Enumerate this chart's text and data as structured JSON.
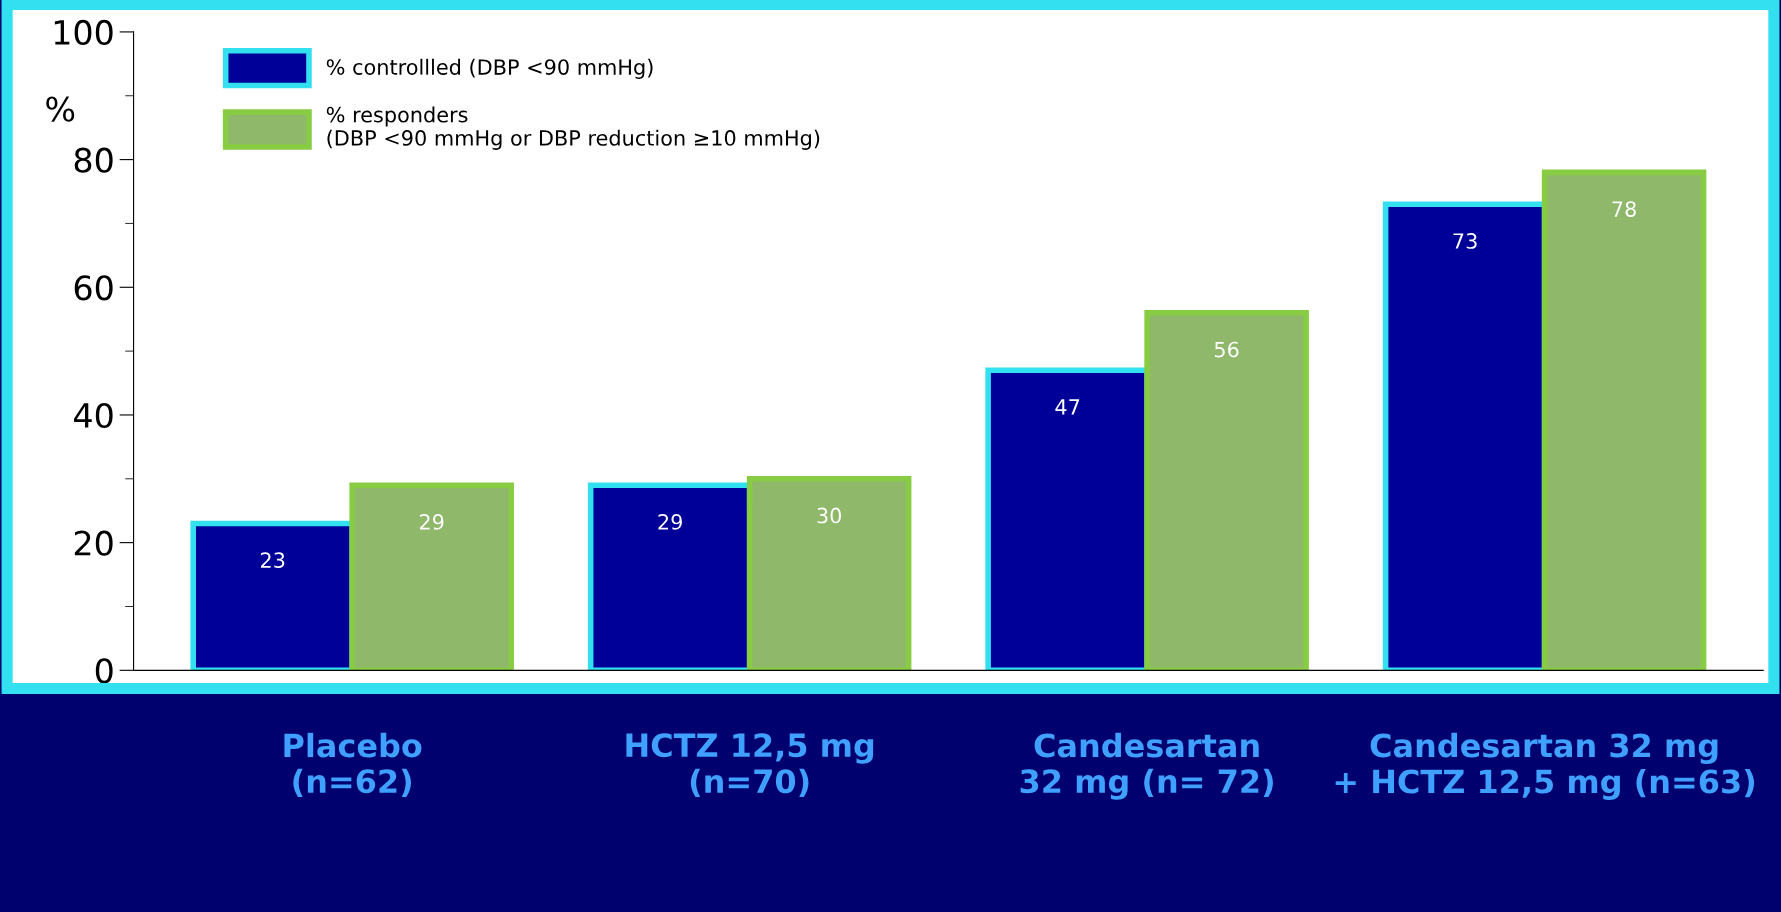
{
  "chart_data": {
    "type": "bar",
    "categories": [
      "Placebo\n(n=62)",
      "HCTZ 12,5 mg\n(n=70)",
      "Candesartan\n32 mg (n= 72)",
      "Candesartan 32 mg\n+ HCTZ 12,5 mg (n=63)"
    ],
    "series": [
      {
        "name": "% controllled (DBP <90 mmHg)",
        "color": "#000099",
        "values": [
          23,
          29,
          47,
          73
        ]
      },
      {
        "name": "% responders\n(DBP <90 mmHg or DBP reduction ≥10 mmHg)",
        "color": "#8fb86a",
        "values": [
          29,
          30,
          56,
          78
        ]
      }
    ],
    "ylabel": "%",
    "ylim": [
      0,
      100
    ],
    "yticks": [
      0,
      20,
      40,
      60,
      80,
      100
    ],
    "data_labels": true,
    "legend": "top left",
    "grid": false
  }
}
